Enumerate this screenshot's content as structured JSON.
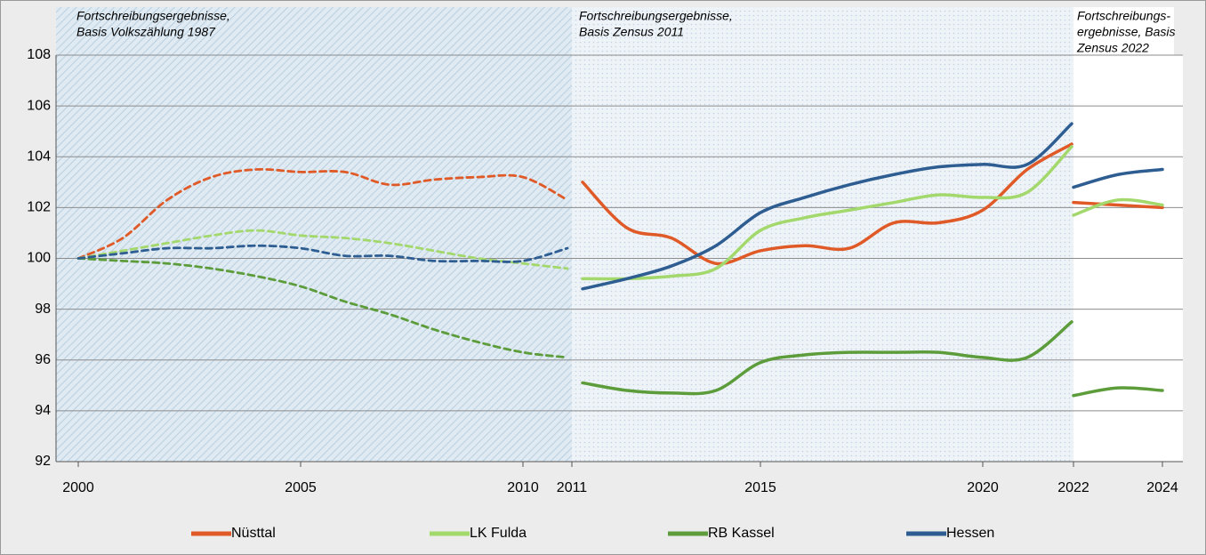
{
  "chart_data": {
    "type": "line",
    "ylim": [
      92,
      108
    ],
    "yticks": [
      92,
      94,
      96,
      98,
      100,
      102,
      104,
      106,
      108
    ],
    "xticks": [
      2000,
      2005,
      2010,
      2011,
      2015,
      2020,
      2022,
      2024
    ],
    "grid": true,
    "legend": "bottom",
    "segments": [
      {
        "annotation": [
          "Fortschreibungsergebnisse,",
          "Basis Volkszählung 1987"
        ],
        "dashed": true,
        "x": [
          2000,
          2001,
          2002,
          2003,
          2004,
          2005,
          2006,
          2007,
          2008,
          2009,
          2010,
          2011
        ]
      },
      {
        "annotation": [
          "Fortschreibungsergebnisse,",
          "Basis Zensus 2011"
        ],
        "dashed": false,
        "x": [
          2011,
          2012,
          2013,
          2014,
          2015,
          2016,
          2017,
          2018,
          2019,
          2020,
          2021,
          2022
        ]
      },
      {
        "annotation": [
          "Fortschreibungs-",
          "ergebnisse, Basis",
          "Zensus 2022"
        ],
        "dashed": false,
        "x": [
          2022,
          2023,
          2024
        ]
      }
    ],
    "series": [
      {
        "name": "Nüsttal",
        "color": "#e05a28",
        "values": [
          [
            100,
            100.8,
            102.3,
            103.2,
            103.5,
            103.4,
            103.4,
            102.9,
            103.1,
            103.2,
            103.2,
            102.3
          ],
          [
            103.0,
            101.2,
            100.8,
            99.8,
            100.3,
            100.5,
            100.4,
            101.4,
            101.4,
            101.9,
            103.5,
            104.5
          ],
          [
            102.2,
            102.1,
            102.0
          ]
        ]
      },
      {
        "name": "LK Fulda",
        "color": "#a3d86c",
        "values": [
          [
            100,
            100.3,
            100.6,
            100.9,
            101.1,
            100.9,
            100.8,
            100.6,
            100.3,
            100.0,
            99.8,
            99.6
          ],
          [
            99.2,
            99.2,
            99.3,
            99.6,
            101.1,
            101.6,
            101.9,
            102.2,
            102.5,
            102.4,
            102.6,
            104.4
          ],
          [
            101.7,
            102.3,
            102.1
          ]
        ]
      },
      {
        "name": "RB Kassel",
        "color": "#5c9c3a",
        "values": [
          [
            100,
            99.9,
            99.8,
            99.6,
            99.3,
            98.9,
            98.3,
            97.8,
            97.2,
            96.7,
            96.3,
            96.1
          ],
          [
            95.1,
            94.8,
            94.7,
            94.8,
            95.9,
            96.2,
            96.3,
            96.3,
            96.3,
            96.1,
            96.1,
            97.5
          ],
          [
            94.6,
            94.9,
            94.8
          ]
        ]
      },
      {
        "name": "Hessen",
        "color": "#2e5d92",
        "values": [
          [
            100,
            100.2,
            100.4,
            100.4,
            100.5,
            100.4,
            100.1,
            100.1,
            99.9,
            99.9,
            99.9,
            100.4
          ],
          [
            98.8,
            99.2,
            99.7,
            100.5,
            101.8,
            102.4,
            102.9,
            103.3,
            103.6,
            103.7,
            103.7,
            105.3
          ],
          [
            102.8,
            103.3,
            103.5
          ]
        ]
      }
    ]
  }
}
